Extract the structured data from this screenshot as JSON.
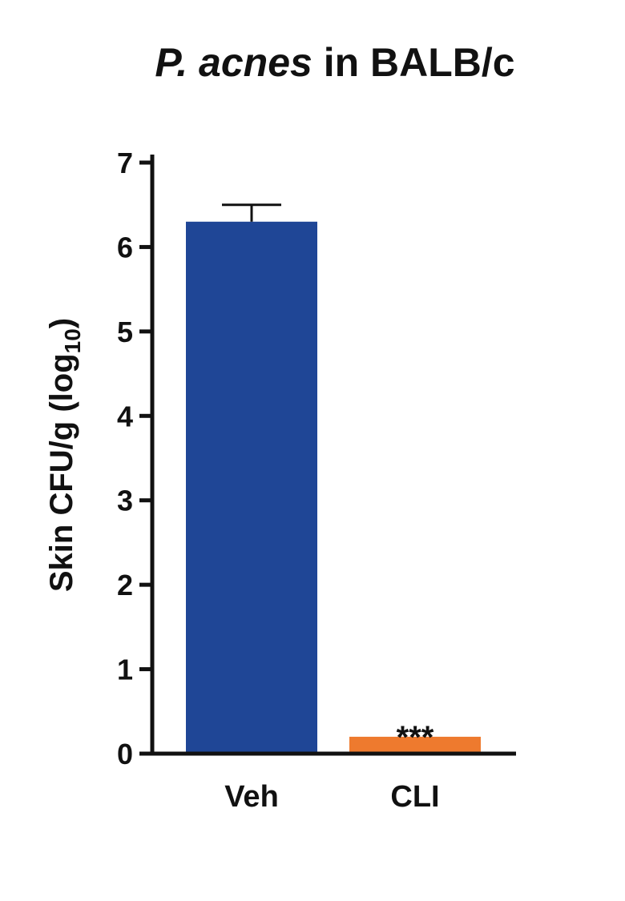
{
  "chart_data": {
    "type": "bar",
    "title_italic": "P. acnes",
    "title_rest": " in BALB/c",
    "ylabel_main": "Skin CFU/g (log",
    "ylabel_sub": "10",
    "ylabel_end": ")",
    "categories": [
      "Veh",
      "CLI"
    ],
    "values": [
      6.3,
      0.2
    ],
    "errors": [
      0.2,
      0
    ],
    "colors": [
      "#1f4696",
      "#ee7a2e"
    ],
    "annotations": [
      "",
      "***"
    ],
    "ylim": [
      0,
      7
    ],
    "yticks": [
      0,
      1,
      2,
      3,
      4,
      5,
      6,
      7
    ],
    "grid": false,
    "legend": "none"
  }
}
